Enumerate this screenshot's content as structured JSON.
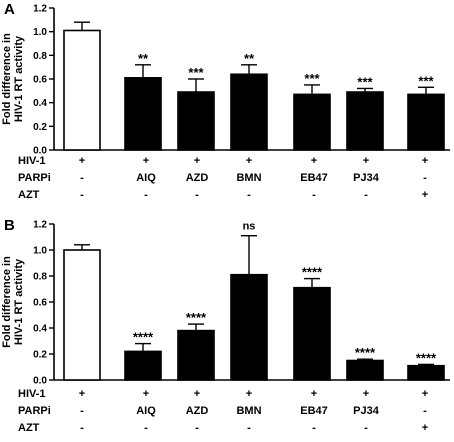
{
  "chart_data": [
    {
      "panel": "A",
      "type": "bar",
      "ylabel": "Fold difference in HIV-1 RT activity",
      "ylabel_lines": [
        "Fold difference in",
        "HIV-1 RT activity"
      ],
      "ylim": [
        0,
        1.2
      ],
      "yticks": [
        "0.0",
        "0.2",
        "0.4",
        "0.6",
        "0.8",
        "1.0",
        "1.2"
      ],
      "values": [
        1.01,
        0.61,
        0.49,
        0.64,
        0.47,
        0.49,
        0.47
      ],
      "errors": [
        0.07,
        0.11,
        0.11,
        0.08,
        0.08,
        0.03,
        0.06
      ],
      "fills": [
        "#ffffff",
        "#000000",
        "#000000",
        "#000000",
        "#000000",
        "#000000",
        "#000000"
      ],
      "significance": [
        "",
        "**",
        "***",
        "**",
        "***",
        "***",
        "***"
      ],
      "rows": [
        {
          "label": "HIV-1",
          "cells": [
            "+",
            "+",
            "+",
            "+",
            "+",
            "+",
            "+"
          ]
        },
        {
          "label": "PARPi",
          "cells": [
            "-",
            "AIQ",
            "AZD",
            "BMN",
            "EB47",
            "PJ34",
            "-"
          ]
        },
        {
          "label": "AZT",
          "cells": [
            "-",
            "-",
            "-",
            "-",
            "-",
            "-",
            "+"
          ]
        }
      ]
    },
    {
      "panel": "B",
      "type": "bar",
      "ylabel": "Fold difference in HIV-1 RT activity",
      "ylabel_lines": [
        "Fold difference in",
        "HIV-1 RT activity"
      ],
      "ylim": [
        0,
        1.2
      ],
      "yticks": [
        "0.0",
        "0.2",
        "0.4",
        "0.6",
        "0.8",
        "1.0",
        "1.2"
      ],
      "values": [
        1.0,
        0.22,
        0.38,
        0.81,
        0.71,
        0.15,
        0.11
      ],
      "errors": [
        0.04,
        0.06,
        0.05,
        0.3,
        0.07,
        0.01,
        0.01
      ],
      "fills": [
        "#ffffff",
        "#000000",
        "#000000",
        "#000000",
        "#000000",
        "#000000",
        "#000000"
      ],
      "significance": [
        "",
        "****",
        "****",
        "ns",
        "****",
        "****",
        "****"
      ],
      "rows": [
        {
          "label": "HIV-1",
          "cells": [
            "+",
            "+",
            "+",
            "+",
            "+",
            "+",
            "+"
          ]
        },
        {
          "label": "PARPi",
          "cells": [
            "-",
            "AIQ",
            "AZD",
            "BMN",
            "EB47",
            "PJ34",
            "-"
          ]
        },
        {
          "label": "AZT",
          "cells": [
            "-",
            "-",
            "-",
            "-",
            "-",
            "-",
            "+"
          ]
        }
      ]
    }
  ]
}
